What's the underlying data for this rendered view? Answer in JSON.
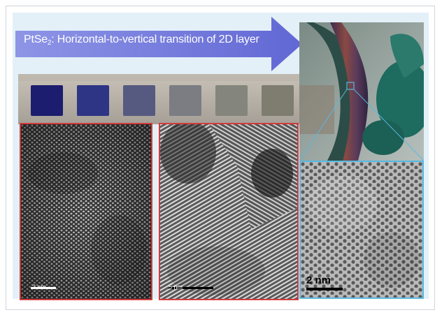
{
  "figure": {
    "title_main": "PtSe",
    "title_sub": "2",
    "title_rest": ": Horizontal-to-vertical transition of 2D layer",
    "colors": {
      "arrow": "#6a70d6",
      "panel_border_left": "#d33b3b",
      "panel_border_right": "#58b9e0",
      "background": "#e3f0f8"
    },
    "samples": {
      "colors": [
        "#1c1d6e",
        "#2e3585",
        "#565a80",
        "#7b7d83",
        "#84857c",
        "#7e7d6f"
      ]
    },
    "panels": [
      {
        "scale_label": "2 nm"
      },
      {
        "scale_label": "5 nm"
      },
      {
        "scale_label": "2 nm"
      }
    ]
  }
}
